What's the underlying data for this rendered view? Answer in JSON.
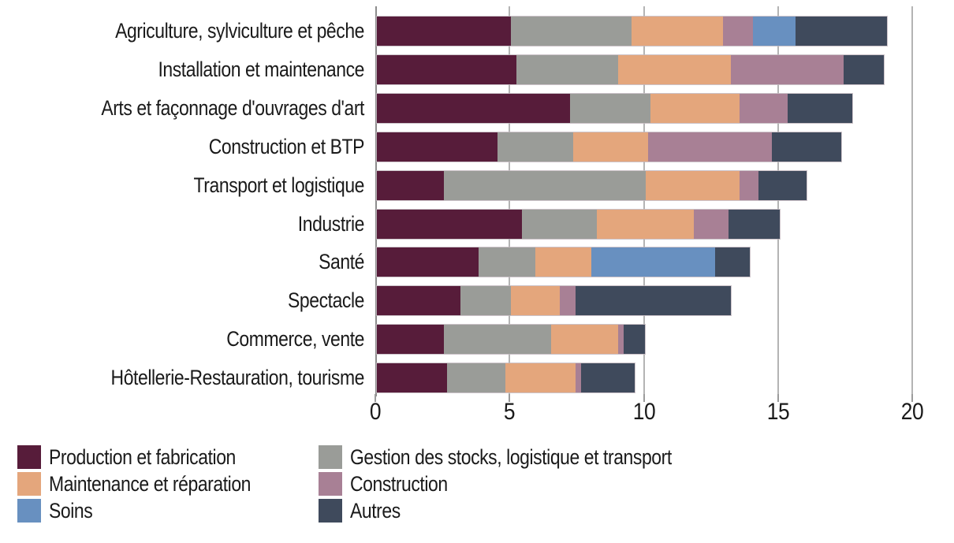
{
  "chart_data": {
    "type": "bar",
    "orientation": "horizontal",
    "stacked": true,
    "title": "",
    "xlabel": "",
    "ylabel": "",
    "xlim": [
      0,
      20
    ],
    "xticks": [
      0,
      5,
      10,
      15,
      20
    ],
    "grid": true,
    "legend_position": "bottom",
    "categories": [
      "Agriculture, sylviculture et pêche",
      "Installation et maintenance",
      "Arts et façonnage d'ouvrages d'art",
      "Construction et BTP",
      "Transport et logistique",
      "Industrie",
      "Santé",
      "Spectacle",
      "Commerce, vente",
      "Hôtellerie-Restauration, tourisme"
    ],
    "series": [
      {
        "name": "Production et fabrication",
        "color": "#571c3a",
        "values": [
          5.0,
          5.2,
          7.2,
          4.5,
          2.5,
          5.4,
          3.8,
          3.1,
          2.5,
          2.6
        ]
      },
      {
        "name": "Gestion des stocks, logistique et transport",
        "color": "#9a9c98",
        "values": [
          4.5,
          3.8,
          3.0,
          2.8,
          7.5,
          2.8,
          2.1,
          1.9,
          4.0,
          2.2
        ]
      },
      {
        "name": "Maintenance et réparation",
        "color": "#e4a67c",
        "values": [
          3.4,
          4.2,
          3.3,
          2.8,
          3.5,
          3.6,
          2.1,
          1.8,
          2.5,
          2.6
        ]
      },
      {
        "name": "Construction",
        "color": "#a88095",
        "values": [
          1.1,
          4.2,
          1.8,
          4.6,
          0.7,
          1.3,
          0,
          0.6,
          0.2,
          0.2
        ]
      },
      {
        "name": "Soins",
        "color": "#6890c0",
        "values": [
          1.6,
          0,
          0,
          0,
          0,
          0,
          4.6,
          0,
          0,
          0
        ]
      },
      {
        "name": "Autres",
        "color": "#3f4a5c",
        "values": [
          3.4,
          1.5,
          2.4,
          2.6,
          1.8,
          1.9,
          1.3,
          5.8,
          0.8,
          2.0
        ]
      }
    ]
  },
  "legend": {
    "columns": [
      [
        0,
        2,
        4
      ],
      [
        1,
        3,
        5
      ]
    ]
  },
  "colors": {
    "gridline": "#b4b4b4",
    "axis": "#8c8c8c",
    "text": "#1a1a1a"
  }
}
